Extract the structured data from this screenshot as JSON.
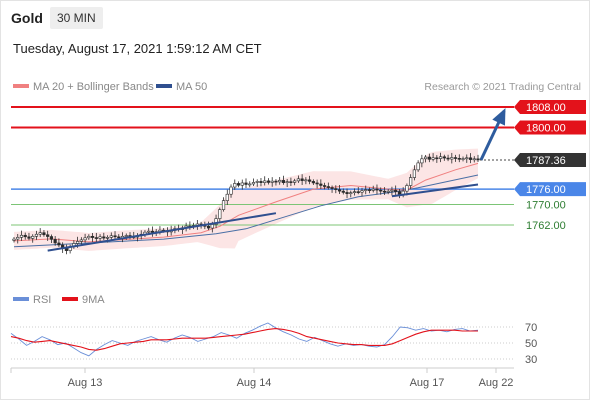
{
  "header": {
    "symbol": "Gold",
    "timeframe": "30 MIN",
    "timestamp": "Tuesday, August 17, 2021 1:59:12 AM CET"
  },
  "legend": {
    "ma20_label": "MA 20 + Bollinger Bands",
    "ma50_label": "MA 50",
    "credit": "Research © 2021 Trading Central",
    "rsi_label": "RSI",
    "ma9_label": "9MA"
  },
  "colors": {
    "resistance": "#e3121b",
    "support_blue": "#4a86e8",
    "support_green": "#7cc576",
    "last_price_bg": "#333333",
    "trend_line": "#2f4f8f",
    "arrow": "#2e5c9e",
    "ma20": "#f08080",
    "bollinger_fill": "#fbe1e1",
    "ma50": "#4a6fa5",
    "rsi": "#6a8fd8",
    "ma9": "#e3121b"
  },
  "chart_data": [
    {
      "type": "candlestick",
      "title": "",
      "x_tick_labels": [
        "Aug 13",
        "Aug 14",
        "Aug 17",
        "Aug 22"
      ],
      "ylim": [
        1748,
        1812
      ],
      "levels": [
        {
          "name": "R2",
          "value": 1808.0,
          "label": "1808.00",
          "style": "resistance"
        },
        {
          "name": "R1",
          "value": 1800.0,
          "label": "1800.00",
          "style": "resistance"
        },
        {
          "name": "Last",
          "value": 1787.36,
          "label": "1787.36",
          "style": "last"
        },
        {
          "name": "Pivot",
          "value": 1776.0,
          "label": "1776.00",
          "style": "pivot"
        },
        {
          "name": "S1",
          "value": 1770.0,
          "label": "1770.00",
          "style": "support"
        },
        {
          "name": "S2",
          "value": 1762.0,
          "label": "1762.00",
          "style": "support"
        }
      ],
      "closes": [
        1756.5,
        1757.2,
        1758.0,
        1757.4,
        1756.8,
        1757.6,
        1758.4,
        1759.0,
        1758.2,
        1757.5,
        1756.4,
        1755.0,
        1754.2,
        1752.8,
        1752.0,
        1753.5,
        1754.8,
        1755.6,
        1756.2,
        1757.0,
        1757.6,
        1757.1,
        1756.8,
        1757.4,
        1756.9,
        1757.2,
        1757.8,
        1757.4,
        1757.0,
        1757.6,
        1757.9,
        1757.5,
        1757.3,
        1757.8,
        1758.4,
        1759.2,
        1759.6,
        1759.1,
        1759.4,
        1760.0,
        1759.8,
        1759.3,
        1759.9,
        1760.6,
        1760.2,
        1760.9,
        1761.6,
        1761.2,
        1761.8,
        1762.4,
        1762.0,
        1761.5,
        1760.8,
        1762.2,
        1764.5,
        1768.0,
        1771.5,
        1774.0,
        1776.8,
        1778.2,
        1777.5,
        1778.4,
        1777.8,
        1778.0,
        1778.6,
        1779.0,
        1778.5,
        1779.2,
        1778.6,
        1779.1,
        1778.8,
        1779.4,
        1778.5,
        1778.9,
        1778.6,
        1779.2,
        1780.0,
        1779.3,
        1779.6,
        1779.0,
        1778.4,
        1778.0,
        1777.4,
        1777.0,
        1776.6,
        1776.2,
        1775.8,
        1775.2,
        1774.7,
        1774.2,
        1774.6,
        1775.0,
        1774.8,
        1775.4,
        1775.8,
        1775.5,
        1776.0,
        1775.6,
        1775.2,
        1774.8,
        1775.2,
        1775.6,
        1775.0,
        1773.6,
        1775.2,
        1777.4,
        1780.5,
        1783.5,
        1786.2,
        1787.8,
        1788.5,
        1787.6,
        1788.2,
        1787.9,
        1788.6,
        1788.1,
        1787.7,
        1788.3,
        1788.0,
        1787.6,
        1787.9,
        1788.2,
        1787.5,
        1787.8,
        1787.36
      ],
      "ma20_points": [
        [
          0,
          1755.8
        ],
        [
          10,
          1756.6
        ],
        [
          20,
          1755.4
        ],
        [
          30,
          1756.4
        ],
        [
          40,
          1757.3
        ],
        [
          50,
          1759.0
        ],
        [
          55,
          1761.5
        ],
        [
          60,
          1765.8
        ],
        [
          70,
          1771.0
        ],
        [
          80,
          1776.0
        ],
        [
          90,
          1777.4
        ],
        [
          100,
          1776.0
        ],
        [
          105,
          1775.6
        ],
        [
          110,
          1779.5
        ],
        [
          118,
          1783.5
        ],
        [
          124,
          1786.0
        ]
      ],
      "ma50_points": [
        [
          0,
          1753.5
        ],
        [
          20,
          1755.0
        ],
        [
          40,
          1756.5
        ],
        [
          54,
          1758.6
        ],
        [
          62,
          1760.5
        ],
        [
          72,
          1765.0
        ],
        [
          82,
          1769.5
        ],
        [
          92,
          1773.0
        ],
        [
          102,
          1775.0
        ],
        [
          108,
          1776.5
        ],
        [
          116,
          1779.0
        ],
        [
          124,
          1781.5
        ]
      ],
      "trend_lines": [
        {
          "from": [
            9,
            1752.0
          ],
          "to": [
            70,
            1766.6
          ]
        },
        {
          "from": [
            101,
            1773.2
          ],
          "to": [
            124,
            1777.8
          ]
        }
      ],
      "arrow": {
        "from": [
          124,
          1787.36
        ],
        "to": [
          131,
          1806.5
        ]
      }
    },
    {
      "type": "line",
      "title": "",
      "ylim": [
        20,
        80
      ],
      "y_ticks": [
        30,
        50,
        70
      ],
      "series": [
        {
          "name": "RSI",
          "values": [
            62,
            55,
            47,
            52,
            58,
            54,
            48,
            50,
            44,
            38,
            34,
            42,
            48,
            53,
            50,
            47,
            52,
            55,
            58,
            54,
            51,
            56,
            60,
            57,
            52,
            55,
            58,
            63,
            60,
            56,
            62,
            66,
            71,
            75,
            69,
            64,
            60,
            55,
            52,
            57,
            53,
            49,
            46,
            49,
            47,
            48,
            46,
            45,
            48,
            58,
            70,
            69,
            66,
            68,
            65,
            66,
            64,
            67,
            68,
            65,
            66
          ]
        },
        {
          "name": "9MA",
          "values": [
            58,
            56,
            53,
            51,
            52,
            53,
            51,
            49,
            47,
            45,
            42,
            41,
            43,
            46,
            49,
            50,
            51,
            52,
            54,
            54,
            54,
            55,
            56,
            56,
            56,
            56,
            57,
            58,
            59,
            60,
            61,
            63,
            65,
            67,
            68,
            67,
            65,
            62,
            58,
            56,
            54,
            52,
            50,
            49,
            48,
            48,
            47,
            47,
            47,
            49,
            53,
            57,
            61,
            64,
            66,
            66,
            66,
            66,
            65,
            65,
            65
          ]
        }
      ]
    }
  ]
}
